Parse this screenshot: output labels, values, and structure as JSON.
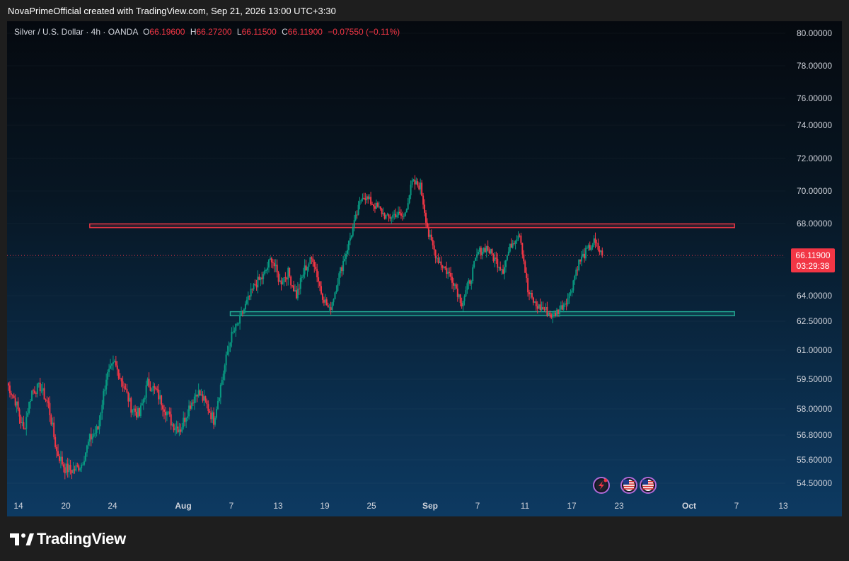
{
  "header": {
    "credit": "NovaPrimeOfficial created with TradingView.com, Sep 21, 2026 13:00 UTC+3:30"
  },
  "legend": {
    "symbol": "Silver / U.S. Dollar · 4h · OANDA",
    "open_label": "O",
    "open": "66.19600",
    "high_label": "H",
    "high": "66.27200",
    "low_label": "L",
    "low": "66.11500",
    "close_label": "C",
    "close": "66.11900",
    "change": "−0.07550 (−0.11%)"
  },
  "price_tag": {
    "price": "66.11900",
    "countdown": "03:29:38",
    "color": "#f23645"
  },
  "footer": {
    "brand": "TradingView"
  },
  "colors": {
    "up": "#089981",
    "down": "#f23645",
    "resistance_zone": "#f23645",
    "support_zone": "#22ab94"
  },
  "icons": {
    "event_flash": "lightning-icon",
    "event_us_1": "us-flag-icon",
    "event_us_2": "us-flag-icon"
  },
  "chart_data": {
    "type": "candlestick",
    "y_ticks": [
      "80.00000",
      "78.00000",
      "76.00000",
      "74.00000",
      "72.00000",
      "70.00000",
      "68.00000",
      "66.00000",
      "64.00000",
      "62.50000",
      "61.00000",
      "59.50000",
      "58.00000",
      "56.80000",
      "55.60000",
      "54.50000"
    ],
    "x_ticks": [
      "14",
      "20",
      "24",
      "Aug",
      "7",
      "13",
      "19",
      "25",
      "Sep",
      "7",
      "11",
      "17",
      "23",
      "Oct",
      "7",
      "13"
    ],
    "x_bold": [
      "Aug",
      "Sep",
      "Oct"
    ],
    "ylim": [
      54.0,
      80.8
    ],
    "current_price": 66.119,
    "zones": [
      {
        "name": "resistance",
        "from": "Jul 21",
        "to": "Oct 7",
        "low": 67.76,
        "high": 67.98
      },
      {
        "name": "support",
        "from": "Aug 7",
        "to": "Oct 7",
        "low": 62.82,
        "high": 63.06
      }
    ],
    "price_path": [
      [
        "Jul 11",
        59.3
      ],
      [
        "Jul 12",
        58.4
      ],
      [
        "Jul 13",
        57.0
      ],
      [
        "Jul 14",
        58.9
      ],
      [
        "Jul 15",
        59.1
      ],
      [
        "Jul 16",
        58.2
      ],
      [
        "Jul 17",
        56.0
      ],
      [
        "Jul 18",
        55.2
      ],
      [
        "Jul 19",
        55.1
      ],
      [
        "Jul 20",
        55.4
      ],
      [
        "Jul 21",
        56.6
      ],
      [
        "Jul 22",
        57.1
      ],
      [
        "Jul 23",
        59.6
      ],
      [
        "Jul 24",
        60.3
      ],
      [
        "Jul 25",
        59.3
      ],
      [
        "Jul 26",
        58.1
      ],
      [
        "Jul 27",
        57.7
      ],
      [
        "Jul 28",
        59.3
      ],
      [
        "Jul 29",
        58.9
      ],
      [
        "Jul 30",
        58.1
      ],
      [
        "Jul 31",
        57.3
      ],
      [
        "Aug 1",
        57.1
      ],
      [
        "Aug 2",
        58.1
      ],
      [
        "Aug 3",
        58.9
      ],
      [
        "Aug 4",
        58.3
      ],
      [
        "Aug 5",
        57.5
      ],
      [
        "Aug 6",
        59.5
      ],
      [
        "Aug 7",
        61.6
      ],
      [
        "Aug 8",
        62.4
      ],
      [
        "Aug 9",
        63.6
      ],
      [
        "Aug 10",
        64.6
      ],
      [
        "Aug 11",
        65.0
      ],
      [
        "Aug 12",
        66.0
      ],
      [
        "Aug 13",
        64.7
      ],
      [
        "Aug 14",
        65.2
      ],
      [
        "Aug 15",
        64.0
      ],
      [
        "Aug 16",
        65.4
      ],
      [
        "Aug 17",
        66.0
      ],
      [
        "Aug 18",
        64.2
      ],
      [
        "Aug 19",
        63.1
      ],
      [
        "Aug 20",
        64.8
      ],
      [
        "Aug 21",
        66.3
      ],
      [
        "Aug 22",
        68.0
      ],
      [
        "Aug 23",
        69.8
      ],
      [
        "Aug 24",
        69.3
      ],
      [
        "Aug 25",
        68.9
      ],
      [
        "Aug 26",
        68.3
      ],
      [
        "Aug 27",
        68.6
      ],
      [
        "Aug 28",
        68.4
      ],
      [
        "Aug 29",
        70.5
      ],
      [
        "Aug 30",
        70.3
      ],
      [
        "Aug 31",
        67.3
      ],
      [
        "Sep 1",
        66.0
      ],
      [
        "Sep 2",
        65.4
      ],
      [
        "Sep 3",
        64.8
      ],
      [
        "Sep 4",
        63.6
      ],
      [
        "Sep 5",
        64.8
      ],
      [
        "Sep 6",
        66.3
      ],
      [
        "Sep 7",
        66.6
      ],
      [
        "Sep 8",
        65.9
      ],
      [
        "Sep 9",
        65.4
      ],
      [
        "Sep 10",
        66.8
      ],
      [
        "Sep 11",
        67.5
      ],
      [
        "Sep 12",
        64.2
      ],
      [
        "Sep 13",
        63.4
      ],
      [
        "Sep 14",
        63.2
      ],
      [
        "Sep 15",
        62.8
      ],
      [
        "Sep 16",
        63.3
      ],
      [
        "Sep 17",
        64.0
      ],
      [
        "Sep 18",
        65.6
      ],
      [
        "Sep 19",
        66.3
      ],
      [
        "Sep 20",
        66.9
      ],
      [
        "Sep 21",
        66.119
      ]
    ]
  }
}
